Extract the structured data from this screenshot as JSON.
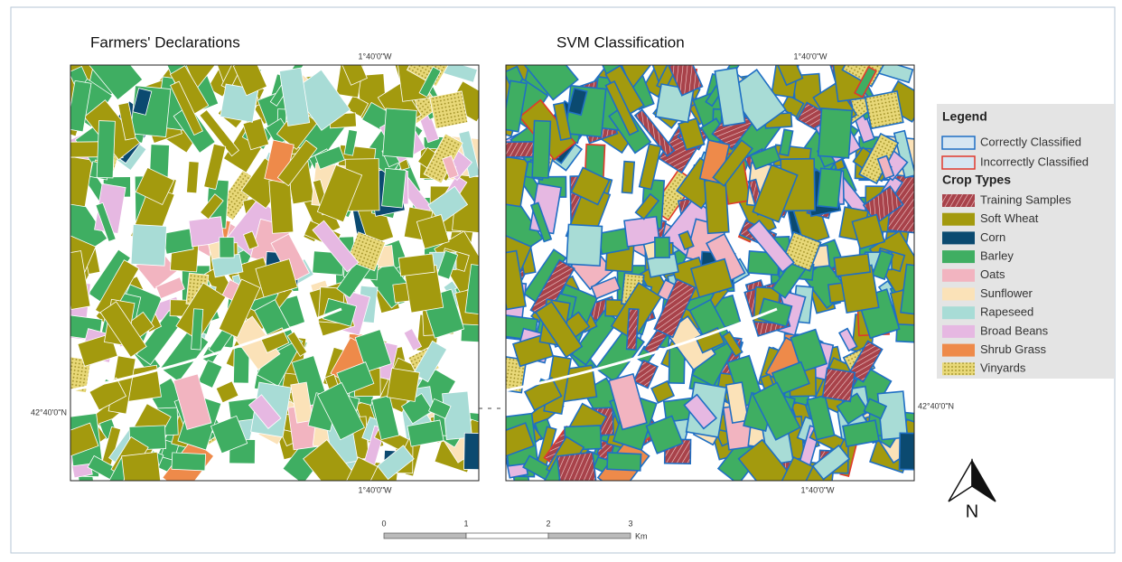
{
  "maps": [
    {
      "title": "Farmers' Declarations",
      "top_label": "1°40'0\"W",
      "bottom_label": "1°40'0\"W",
      "side_label": "42°40'0\"N"
    },
    {
      "title": "SVM Classification",
      "top_label": "1°40'0\"W",
      "bottom_label": "1°40'0\"W",
      "side_label": "42°40'0\"N"
    }
  ],
  "legend": {
    "title": "Legend",
    "outline_items": [
      {
        "label": "Correctly Classified",
        "color": "#1f6fc4"
      },
      {
        "label": "Incorrectly Classified",
        "color": "#e0392c"
      }
    ],
    "crop_title": "Crop Types",
    "crop_items": [
      {
        "label": "Training Samples",
        "color": "#a8424a"
      },
      {
        "label": "Soft Wheat",
        "color": "#a39a0e"
      },
      {
        "label": "Corn",
        "color": "#0b4a70"
      },
      {
        "label": "Barley",
        "color": "#3fae62"
      },
      {
        "label": "Oats",
        "color": "#f2b4c0"
      },
      {
        "label": "Sunflower",
        "color": "#fbe2b8"
      },
      {
        "label": "Rapeseed",
        "color": "#a8dcd6"
      },
      {
        "label": "Broad Beans",
        "color": "#e6b8e2"
      },
      {
        "label": "Shrub Grass",
        "color": "#ee8a4a"
      },
      {
        "label": "Vinyards",
        "color": "#d8c458"
      }
    ]
  },
  "scale_bar": {
    "ticks": [
      0,
      1,
      2,
      3
    ],
    "unit": "Km"
  },
  "north": "N"
}
